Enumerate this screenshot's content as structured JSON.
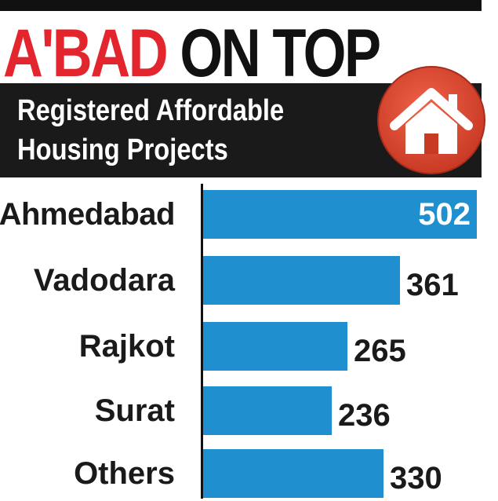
{
  "headline": {
    "part1": "A'BAD",
    "part2": "ON TOP"
  },
  "subtitle": {
    "line1": "Registered Affordable",
    "line2": "Housing Projects"
  },
  "colors": {
    "accent": "#e3262d",
    "bar": "#1f8fd0",
    "band": "#1a1a1a"
  },
  "icons": {
    "badge": "house-icon"
  },
  "chart_data": {
    "type": "bar",
    "orientation": "horizontal",
    "title": "A'BAD ON TOP",
    "subtitle": "Registered Affordable Housing Projects",
    "categories": [
      "Ahmedabad",
      "Vadodara",
      "Rajkot",
      "Surat",
      "Others"
    ],
    "values": [
      502,
      361,
      265,
      236,
      330
    ],
    "xlim": [
      0,
      510
    ],
    "grid": false,
    "legend": "none"
  }
}
